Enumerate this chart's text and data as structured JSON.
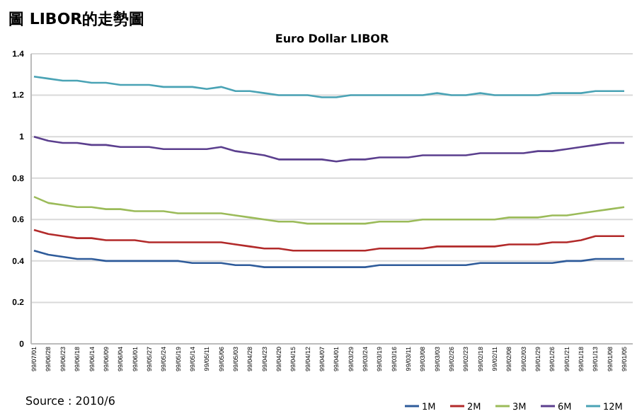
{
  "chart_data": {
    "type": "line",
    "title": "圖 LIBOR的走勢圖",
    "subtitle": "Euro Dollar LIBOR",
    "categories": [
      "99/07/01",
      "99/06/28",
      "99/06/23",
      "99/06/18",
      "99/06/14",
      "99/06/09",
      "99/06/04",
      "99/06/01",
      "99/05/27",
      "99/05/24",
      "99/05/19",
      "99/05/14",
      "99/05/11",
      "99/05/06",
      "99/05/03",
      "99/04/28",
      "99/04/23",
      "99/04/20",
      "99/04/15",
      "99/04/12",
      "99/04/07",
      "99/04/01",
      "99/03/29",
      "99/03/24",
      "99/03/19",
      "99/03/16",
      "99/03/11",
      "99/03/08",
      "99/03/03",
      "99/02/26",
      "99/02/23",
      "99/02/18",
      "99/02/11",
      "99/02/08",
      "99/02/03",
      "99/01/29",
      "99/01/26",
      "99/01/21",
      "99/01/18",
      "99/01/13",
      "99/01/08",
      "99/01/05"
    ],
    "series": [
      {
        "name": "1M",
        "color": "#2e5b9a",
        "values": [
          0.45,
          0.43,
          0.42,
          0.41,
          0.41,
          0.4,
          0.4,
          0.4,
          0.4,
          0.4,
          0.4,
          0.39,
          0.39,
          0.39,
          0.38,
          0.38,
          0.37,
          0.37,
          0.37,
          0.37,
          0.37,
          0.37,
          0.37,
          0.37,
          0.38,
          0.38,
          0.38,
          0.38,
          0.38,
          0.38,
          0.38,
          0.39,
          0.39,
          0.39,
          0.39,
          0.39,
          0.39,
          0.4,
          0.4,
          0.41,
          0.41,
          0.41
        ]
      },
      {
        "name": "2M",
        "color": "#b22a2a",
        "values": [
          0.55,
          0.53,
          0.52,
          0.51,
          0.51,
          0.5,
          0.5,
          0.5,
          0.49,
          0.49,
          0.49,
          0.49,
          0.49,
          0.49,
          0.48,
          0.47,
          0.46,
          0.46,
          0.45,
          0.45,
          0.45,
          0.45,
          0.45,
          0.45,
          0.46,
          0.46,
          0.46,
          0.46,
          0.47,
          0.47,
          0.47,
          0.47,
          0.47,
          0.48,
          0.48,
          0.48,
          0.49,
          0.49,
          0.5,
          0.52,
          0.52,
          0.52
        ]
      },
      {
        "name": "3M",
        "color": "#9bbb59",
        "values": [
          0.71,
          0.68,
          0.67,
          0.66,
          0.66,
          0.65,
          0.65,
          0.64,
          0.64,
          0.64,
          0.63,
          0.63,
          0.63,
          0.63,
          0.62,
          0.61,
          0.6,
          0.59,
          0.59,
          0.58,
          0.58,
          0.58,
          0.58,
          0.58,
          0.59,
          0.59,
          0.59,
          0.6,
          0.6,
          0.6,
          0.6,
          0.6,
          0.6,
          0.61,
          0.61,
          0.61,
          0.62,
          0.62,
          0.63,
          0.64,
          0.65,
          0.66
        ]
      },
      {
        "name": "6M",
        "color": "#5b3f8e",
        "values": [
          1.0,
          0.98,
          0.97,
          0.97,
          0.96,
          0.96,
          0.95,
          0.95,
          0.95,
          0.94,
          0.94,
          0.94,
          0.94,
          0.95,
          0.93,
          0.92,
          0.91,
          0.89,
          0.89,
          0.89,
          0.89,
          0.88,
          0.89,
          0.89,
          0.9,
          0.9,
          0.9,
          0.91,
          0.91,
          0.91,
          0.91,
          0.92,
          0.92,
          0.92,
          0.92,
          0.93,
          0.93,
          0.94,
          0.95,
          0.96,
          0.97,
          0.97
        ]
      },
      {
        "name": "12M",
        "color": "#4aa3b5",
        "values": [
          1.29,
          1.28,
          1.27,
          1.27,
          1.26,
          1.26,
          1.25,
          1.25,
          1.25,
          1.24,
          1.24,
          1.24,
          1.23,
          1.24,
          1.22,
          1.22,
          1.21,
          1.2,
          1.2,
          1.2,
          1.19,
          1.19,
          1.2,
          1.2,
          1.2,
          1.2,
          1.2,
          1.2,
          1.21,
          1.2,
          1.2,
          1.21,
          1.2,
          1.2,
          1.2,
          1.2,
          1.21,
          1.21,
          1.21,
          1.22,
          1.22,
          1.22
        ]
      }
    ],
    "ylim": [
      0,
      1.4
    ],
    "yticks": [
      0,
      0.2,
      0.4,
      0.6,
      0.8,
      1,
      1.2,
      1.4
    ],
    "grid": "y",
    "legend": "bottom right",
    "marker": "none",
    "line_style": "solid",
    "annotations": [
      "Source : 2010/6"
    ]
  }
}
